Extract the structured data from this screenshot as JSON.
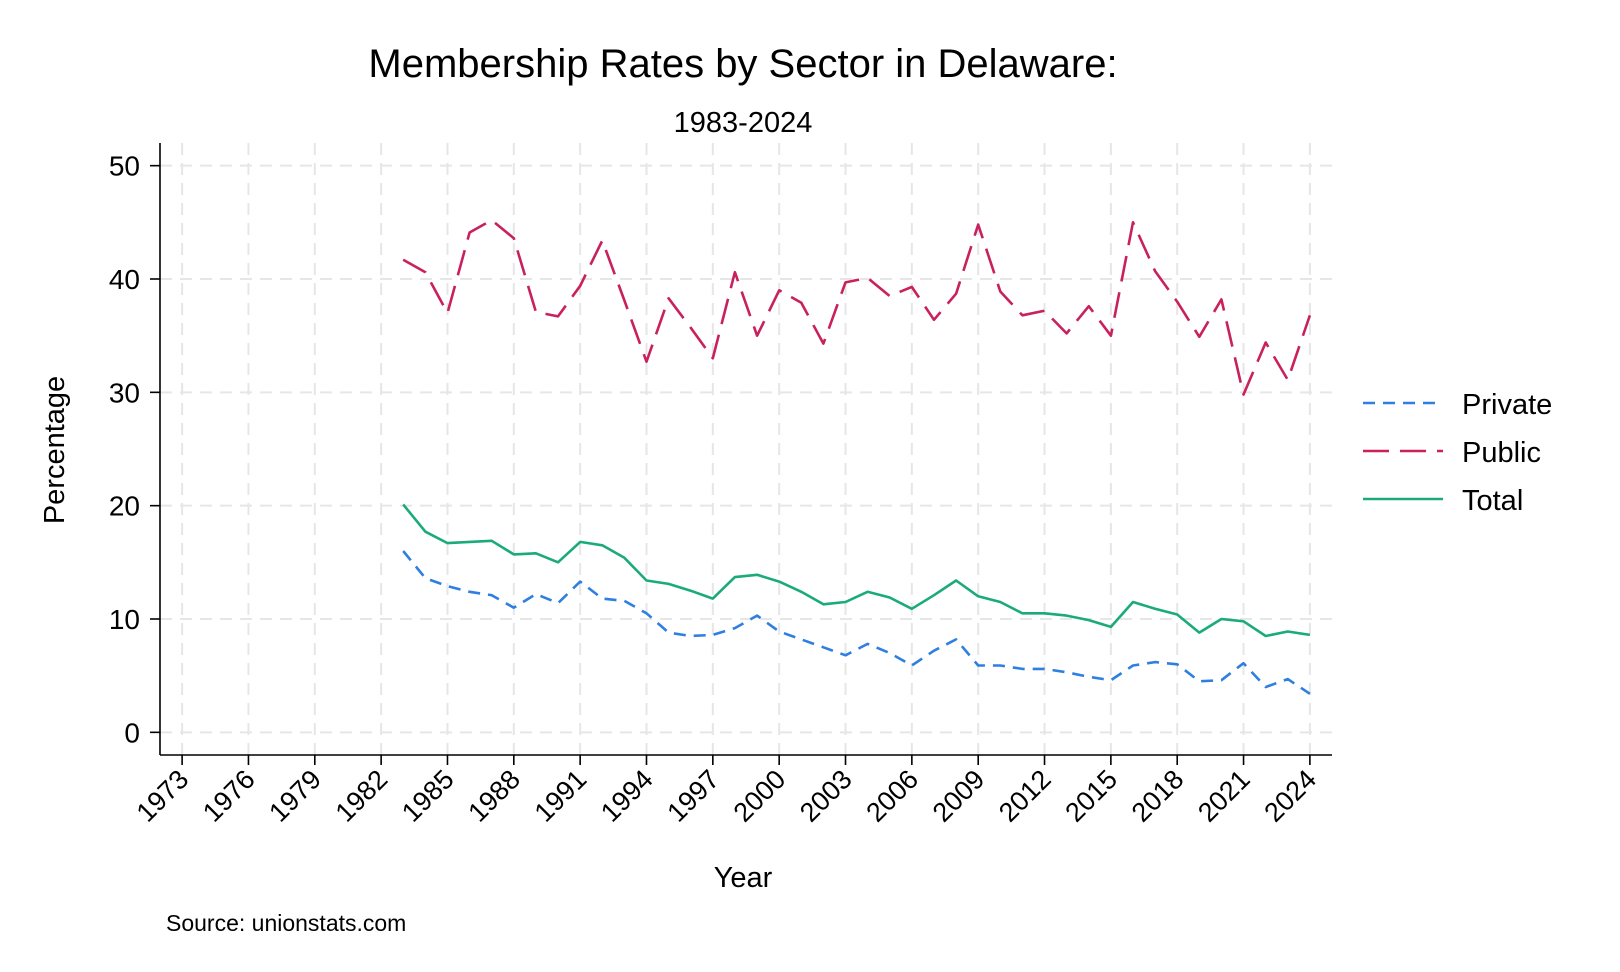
{
  "chart_data": {
    "type": "line",
    "title": "Membership Rates by Sector in Delaware:",
    "subtitle": "1983-2024",
    "xlabel": "Year",
    "ylabel": "Percentage",
    "xlim": [
      1972,
      2025
    ],
    "ylim": [
      -2,
      52
    ],
    "x_ticks": [
      "1973",
      "1976",
      "1979",
      "1982",
      "1985",
      "1988",
      "1991",
      "1994",
      "1997",
      "2000",
      "2003",
      "2006",
      "2009",
      "2012",
      "2015",
      "2018",
      "2021",
      "2024"
    ],
    "y_ticks": [
      "0",
      "10",
      "20",
      "30",
      "40",
      "50"
    ],
    "grid": true,
    "legend_position": "right",
    "note": "Source: unionstats.com",
    "x": [
      1983,
      1984,
      1985,
      1986,
      1987,
      1988,
      1989,
      1990,
      1991,
      1992,
      1993,
      1994,
      1995,
      1996,
      1997,
      1998,
      1999,
      2000,
      2001,
      2002,
      2003,
      2004,
      2005,
      2006,
      2007,
      2008,
      2009,
      2010,
      2011,
      2012,
      2013,
      2014,
      2015,
      2016,
      2017,
      2018,
      2019,
      2020,
      2021,
      2022,
      2023,
      2024
    ],
    "series": [
      {
        "name": "Private",
        "color": "#2f7fe0",
        "dash": "short",
        "values": [
          16.0,
          13.6,
          12.9,
          12.4,
          12.1,
          11.0,
          12.2,
          11.4,
          13.3,
          11.8,
          11.6,
          10.5,
          8.8,
          8.5,
          8.6,
          9.2,
          10.3,
          8.9,
          8.2,
          7.5,
          6.8,
          7.8,
          7.0,
          5.9,
          7.2,
          8.2,
          5.9,
          5.9,
          5.6,
          5.6,
          5.3,
          4.9,
          4.6,
          5.9,
          6.2,
          6.0,
          4.5,
          4.6,
          6.1,
          4.0,
          4.7,
          3.4
        ]
      },
      {
        "name": "Public",
        "color": "#c8215d",
        "dash": "long",
        "values": [
          41.7,
          40.6,
          37.0,
          44.1,
          45.2,
          43.6,
          37.1,
          36.7,
          39.4,
          43.4,
          38.1,
          32.7,
          38.3,
          35.7,
          33.0,
          40.6,
          35.0,
          39.0,
          37.9,
          34.3,
          39.7,
          40.1,
          38.5,
          39.3,
          36.4,
          38.7,
          44.8,
          38.9,
          36.8,
          37.2,
          35.2,
          37.6,
          35.0,
          45.0,
          40.7,
          38.0,
          34.9,
          38.2,
          29.8,
          34.4,
          31.1,
          36.8
        ]
      },
      {
        "name": "Total",
        "color": "#1aab78",
        "dash": "solid",
        "values": [
          20.1,
          17.7,
          16.7,
          16.8,
          16.9,
          15.7,
          15.8,
          15.0,
          16.8,
          16.5,
          15.4,
          13.4,
          13.1,
          12.5,
          11.8,
          13.7,
          13.9,
          13.3,
          12.4,
          11.3,
          11.5,
          12.4,
          11.9,
          10.9,
          12.1,
          13.4,
          12.0,
          11.5,
          10.5,
          10.5,
          10.3,
          9.9,
          9.3,
          11.5,
          10.9,
          10.4,
          8.8,
          10.0,
          9.8,
          8.5,
          8.9,
          8.6
        ]
      }
    ]
  }
}
